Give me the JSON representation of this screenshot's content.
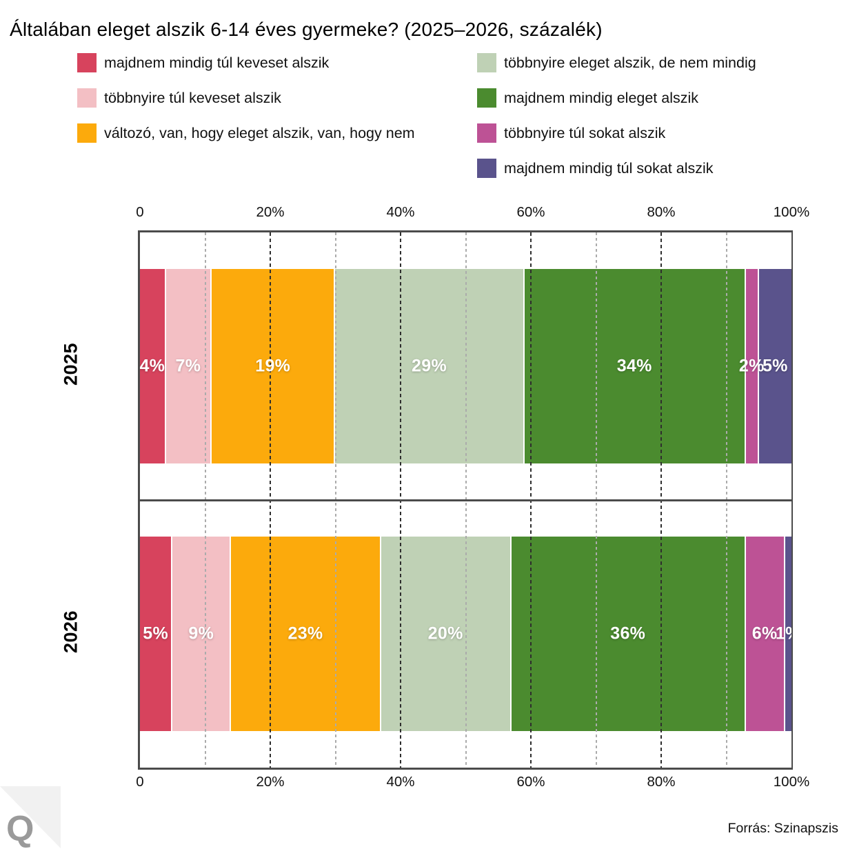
{
  "title": "Általában eleget alszik 6-14 éves gyermeke? (2025–2026, százalék)",
  "legend": {
    "columns": [
      {
        "items": [
          {
            "label": "majdnem mindig túl keveset alszik",
            "color": "#d7435d"
          },
          {
            "label": "többnyire túl keveset alszik",
            "color": "#f3bfc4"
          },
          {
            "label": "változó, van, hogy eleget alszik, van, hogy nem",
            "color": "#fcaa0c"
          }
        ]
      },
      {
        "items": [
          {
            "label": "többnyire eleget alszik, de nem mindig",
            "color": "#bfd1b5"
          },
          {
            "label": "majdnem mindig eleget alszik",
            "color": "#4b8b2f"
          },
          {
            "label": "többnyire túl sokat alszik",
            "color": "#bd5295"
          },
          {
            "label": "majdnem mindig túl sokat alszik",
            "color": "#5a538c"
          }
        ]
      }
    ]
  },
  "chart_data": {
    "type": "bar",
    "orientation": "horizontal",
    "stacked": true,
    "title": "Általában eleget alszik 6-14 éves gyermeke? (2025–2026, százalék)",
    "categories": [
      "2025",
      "2026"
    ],
    "series": [
      {
        "name": "majdnem mindig túl keveset alszik",
        "color": "#d7435d",
        "values": [
          4,
          5
        ]
      },
      {
        "name": "többnyire túl keveset alszik",
        "color": "#f3bfc4",
        "values": [
          7,
          9
        ]
      },
      {
        "name": "változó, van, hogy eleget alszik, van, hogy nem",
        "color": "#fcaa0c",
        "values": [
          19,
          23
        ]
      },
      {
        "name": "többnyire eleget alszik, de nem mindig",
        "color": "#bfd1b5",
        "values": [
          29,
          20
        ]
      },
      {
        "name": "majdnem mindig eleget alszik",
        "color": "#4b8b2f",
        "values": [
          34,
          36
        ]
      },
      {
        "name": "többnyire túl sokat alszik",
        "color": "#bd5295",
        "values": [
          2,
          6
        ]
      },
      {
        "name": "majdnem mindig túl sokat alszik",
        "color": "#5a538c",
        "values": [
          5,
          1
        ]
      }
    ],
    "value_label_suffix": "%",
    "xlim": [
      0,
      100
    ],
    "x_ticks": [
      {
        "pos": 0,
        "label": "0"
      },
      {
        "pos": 20,
        "label": "20%"
      },
      {
        "pos": 40,
        "label": "40%"
      },
      {
        "pos": 60,
        "label": "60%"
      },
      {
        "pos": 80,
        "label": "80%"
      },
      {
        "pos": 100,
        "label": "100%"
      }
    ],
    "grid": {
      "major": [
        20,
        40,
        60,
        80
      ],
      "minor": [
        10,
        30,
        50,
        70,
        90
      ]
    }
  },
  "footer": {
    "source": "Forrás: Szinapszis"
  },
  "logo": {
    "letter": "Q"
  }
}
